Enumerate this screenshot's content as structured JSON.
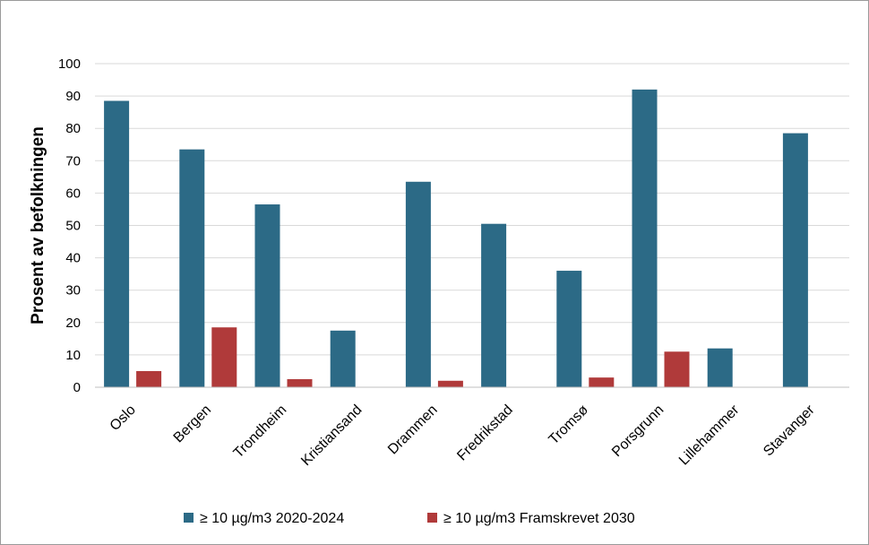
{
  "chart_data": {
    "type": "bar",
    "title": "",
    "xlabel": "",
    "ylabel": "Prosent av befolkningen",
    "ylim": [
      0,
      100
    ],
    "yticks": [
      0,
      10,
      20,
      30,
      40,
      50,
      60,
      70,
      80,
      90,
      100
    ],
    "grid": "horizontal",
    "legend_position": "bottom",
    "categories": [
      "Oslo",
      "Bergen",
      "Trondheim",
      "Kristiansand",
      "Drammen",
      "Fredrikstad",
      "Tromsø",
      "Porsgrunn",
      "Lillehammer",
      "Stavanger"
    ],
    "series": [
      {
        "name": "≥ 10 µg/m3 2020-2024",
        "color": "#2c6a86",
        "values": [
          88.5,
          73.5,
          56.5,
          17.5,
          63.5,
          50.5,
          36,
          92,
          12,
          78.5
        ]
      },
      {
        "name": "≥ 10 µg/m3 Framskrevet 2030",
        "color": "#b03a3a",
        "values": [
          5,
          18.5,
          2.5,
          0,
          2,
          0,
          3,
          11,
          0,
          0
        ]
      }
    ]
  }
}
